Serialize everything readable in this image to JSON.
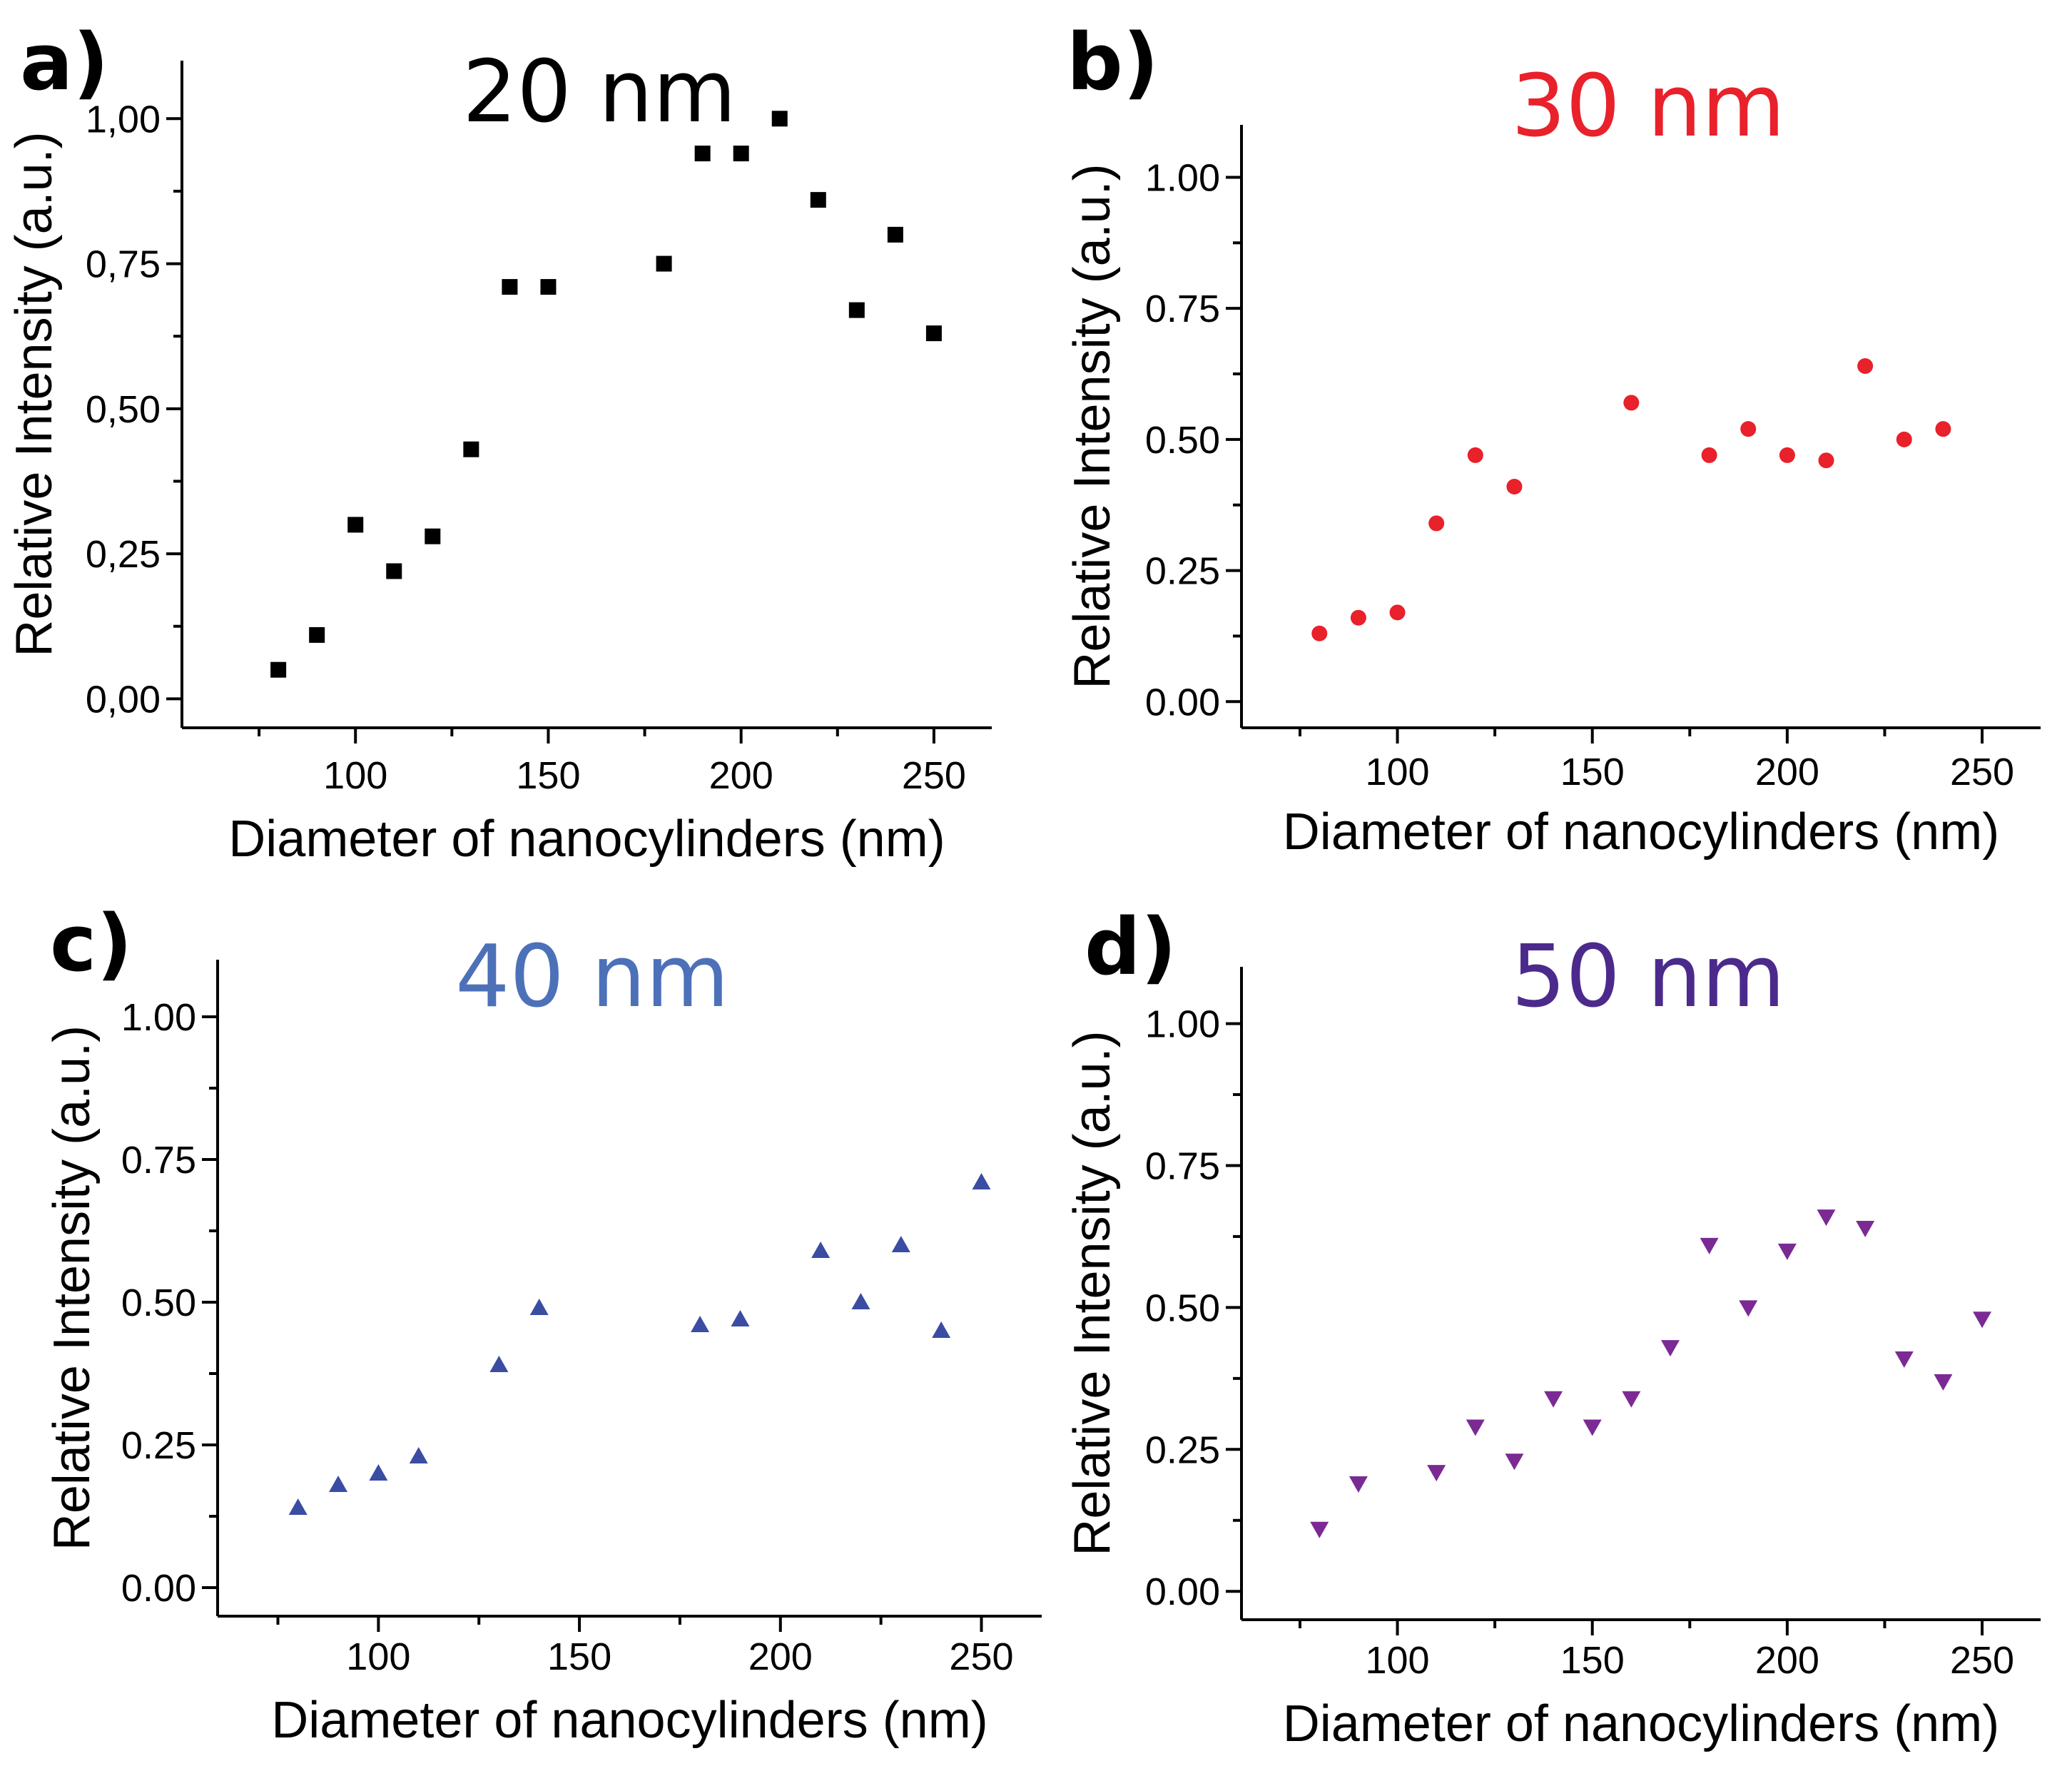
{
  "chart_data": [
    {
      "type": "scatter",
      "panel": "a)",
      "title": "20 nm",
      "title_color": "#000000",
      "marker": "square",
      "marker_color": "#000000",
      "xlabel": "Diameter of nanocylinders (nm)",
      "ylabel": "Relative Intensity (a.u.)",
      "xlim": [
        55,
        265
      ],
      "ylim": [
        -0.05,
        1.1
      ],
      "xticks": [
        100,
        150,
        200,
        250
      ],
      "xtick_labels": [
        "100",
        "150",
        "200",
        "250"
      ],
      "yticks": [
        0,
        0.25,
        0.5,
        0.75,
        1.0
      ],
      "ytick_labels": [
        "0,00",
        "0,25",
        "0,50",
        "0,75",
        "1,00"
      ],
      "series": [
        {
          "name": "20 nm",
          "x": [
            80,
            90,
            100,
            110,
            120,
            130,
            140,
            150,
            180,
            190,
            200,
            210,
            220,
            230,
            240,
            250
          ],
          "y": [
            0.05,
            0.11,
            0.3,
            0.22,
            0.28,
            0.43,
            0.71,
            0.71,
            0.75,
            0.94,
            0.94,
            1.0,
            0.86,
            0.67,
            0.8,
            0.63
          ]
        }
      ]
    },
    {
      "type": "scatter",
      "panel": "b)",
      "title": "30 nm",
      "title_color": "#e8212b",
      "marker": "circle",
      "marker_color": "#e8212b",
      "xlabel": "Diameter of nanocylinders (nm)",
      "ylabel": "Relative Intensity (a.u.)",
      "xlim": [
        60,
        265
      ],
      "ylim": [
        -0.05,
        1.1
      ],
      "xticks": [
        100,
        150,
        200,
        250
      ],
      "xtick_labels": [
        "100",
        "150",
        "200",
        "250"
      ],
      "yticks": [
        0,
        0.25,
        0.5,
        0.75,
        1.0
      ],
      "ytick_labels": [
        "0.00",
        "0.25",
        "0.50",
        "0.75",
        "1.00"
      ],
      "series": [
        {
          "name": "30 nm",
          "x": [
            80,
            90,
            100,
            110,
            120,
            130,
            160,
            180,
            190,
            200,
            210,
            220,
            230,
            240
          ],
          "y": [
            0.13,
            0.16,
            0.17,
            0.34,
            0.47,
            0.41,
            0.57,
            0.47,
            0.52,
            0.47,
            0.46,
            0.64,
            0.5,
            0.52
          ]
        }
      ]
    },
    {
      "type": "scatter",
      "panel": "c)",
      "title": "40 nm",
      "title_color": "#4d71b8",
      "marker": "triangle-up",
      "marker_color": "#3a4da2",
      "xlabel": "Diameter of nanocylinders (nm)",
      "ylabel": "Relative Intensity (a.u.)",
      "xlim": [
        60,
        265
      ],
      "ylim": [
        -0.05,
        1.1
      ],
      "xticks": [
        100,
        150,
        200,
        250
      ],
      "xtick_labels": [
        "100",
        "150",
        "200",
        "250"
      ],
      "yticks": [
        0,
        0.25,
        0.5,
        0.75,
        1.0
      ],
      "ytick_labels": [
        "0.00",
        "0.25",
        "0.50",
        "0.75",
        "1.00"
      ],
      "series": [
        {
          "name": "40 nm",
          "x": [
            80,
            90,
            100,
            110,
            130,
            140,
            180,
            190,
            210,
            220,
            230,
            240,
            250
          ],
          "y": [
            0.14,
            0.18,
            0.2,
            0.23,
            0.39,
            0.49,
            0.46,
            0.47,
            0.59,
            0.5,
            0.6,
            0.45,
            0.71
          ]
        }
      ]
    },
    {
      "type": "scatter",
      "panel": "d)",
      "title": "50 nm",
      "title_color": "#4b2a8c",
      "marker": "triangle-down",
      "marker_color": "#7b2a93",
      "xlabel": "Diameter of nanocylinders (nm)",
      "ylabel": "Relative Intensity (a.u.)",
      "xlim": [
        60,
        265
      ],
      "ylim": [
        -0.05,
        1.1
      ],
      "xticks": [
        100,
        150,
        200,
        250
      ],
      "xtick_labels": [
        "100",
        "150",
        "200",
        "250"
      ],
      "yticks": [
        0,
        0.25,
        0.5,
        0.75,
        1.0
      ],
      "ytick_labels": [
        "0.00",
        "0.25",
        "0.50",
        "0.75",
        "1.00"
      ],
      "series": [
        {
          "name": "50 nm",
          "x": [
            80,
            90,
            110,
            120,
            130,
            140,
            150,
            160,
            170,
            180,
            190,
            200,
            210,
            220,
            230,
            240,
            250
          ],
          "y": [
            0.11,
            0.19,
            0.21,
            0.29,
            0.23,
            0.34,
            0.29,
            0.34,
            0.43,
            0.61,
            0.5,
            0.6,
            0.66,
            0.64,
            0.41,
            0.37,
            0.48
          ]
        }
      ]
    }
  ]
}
